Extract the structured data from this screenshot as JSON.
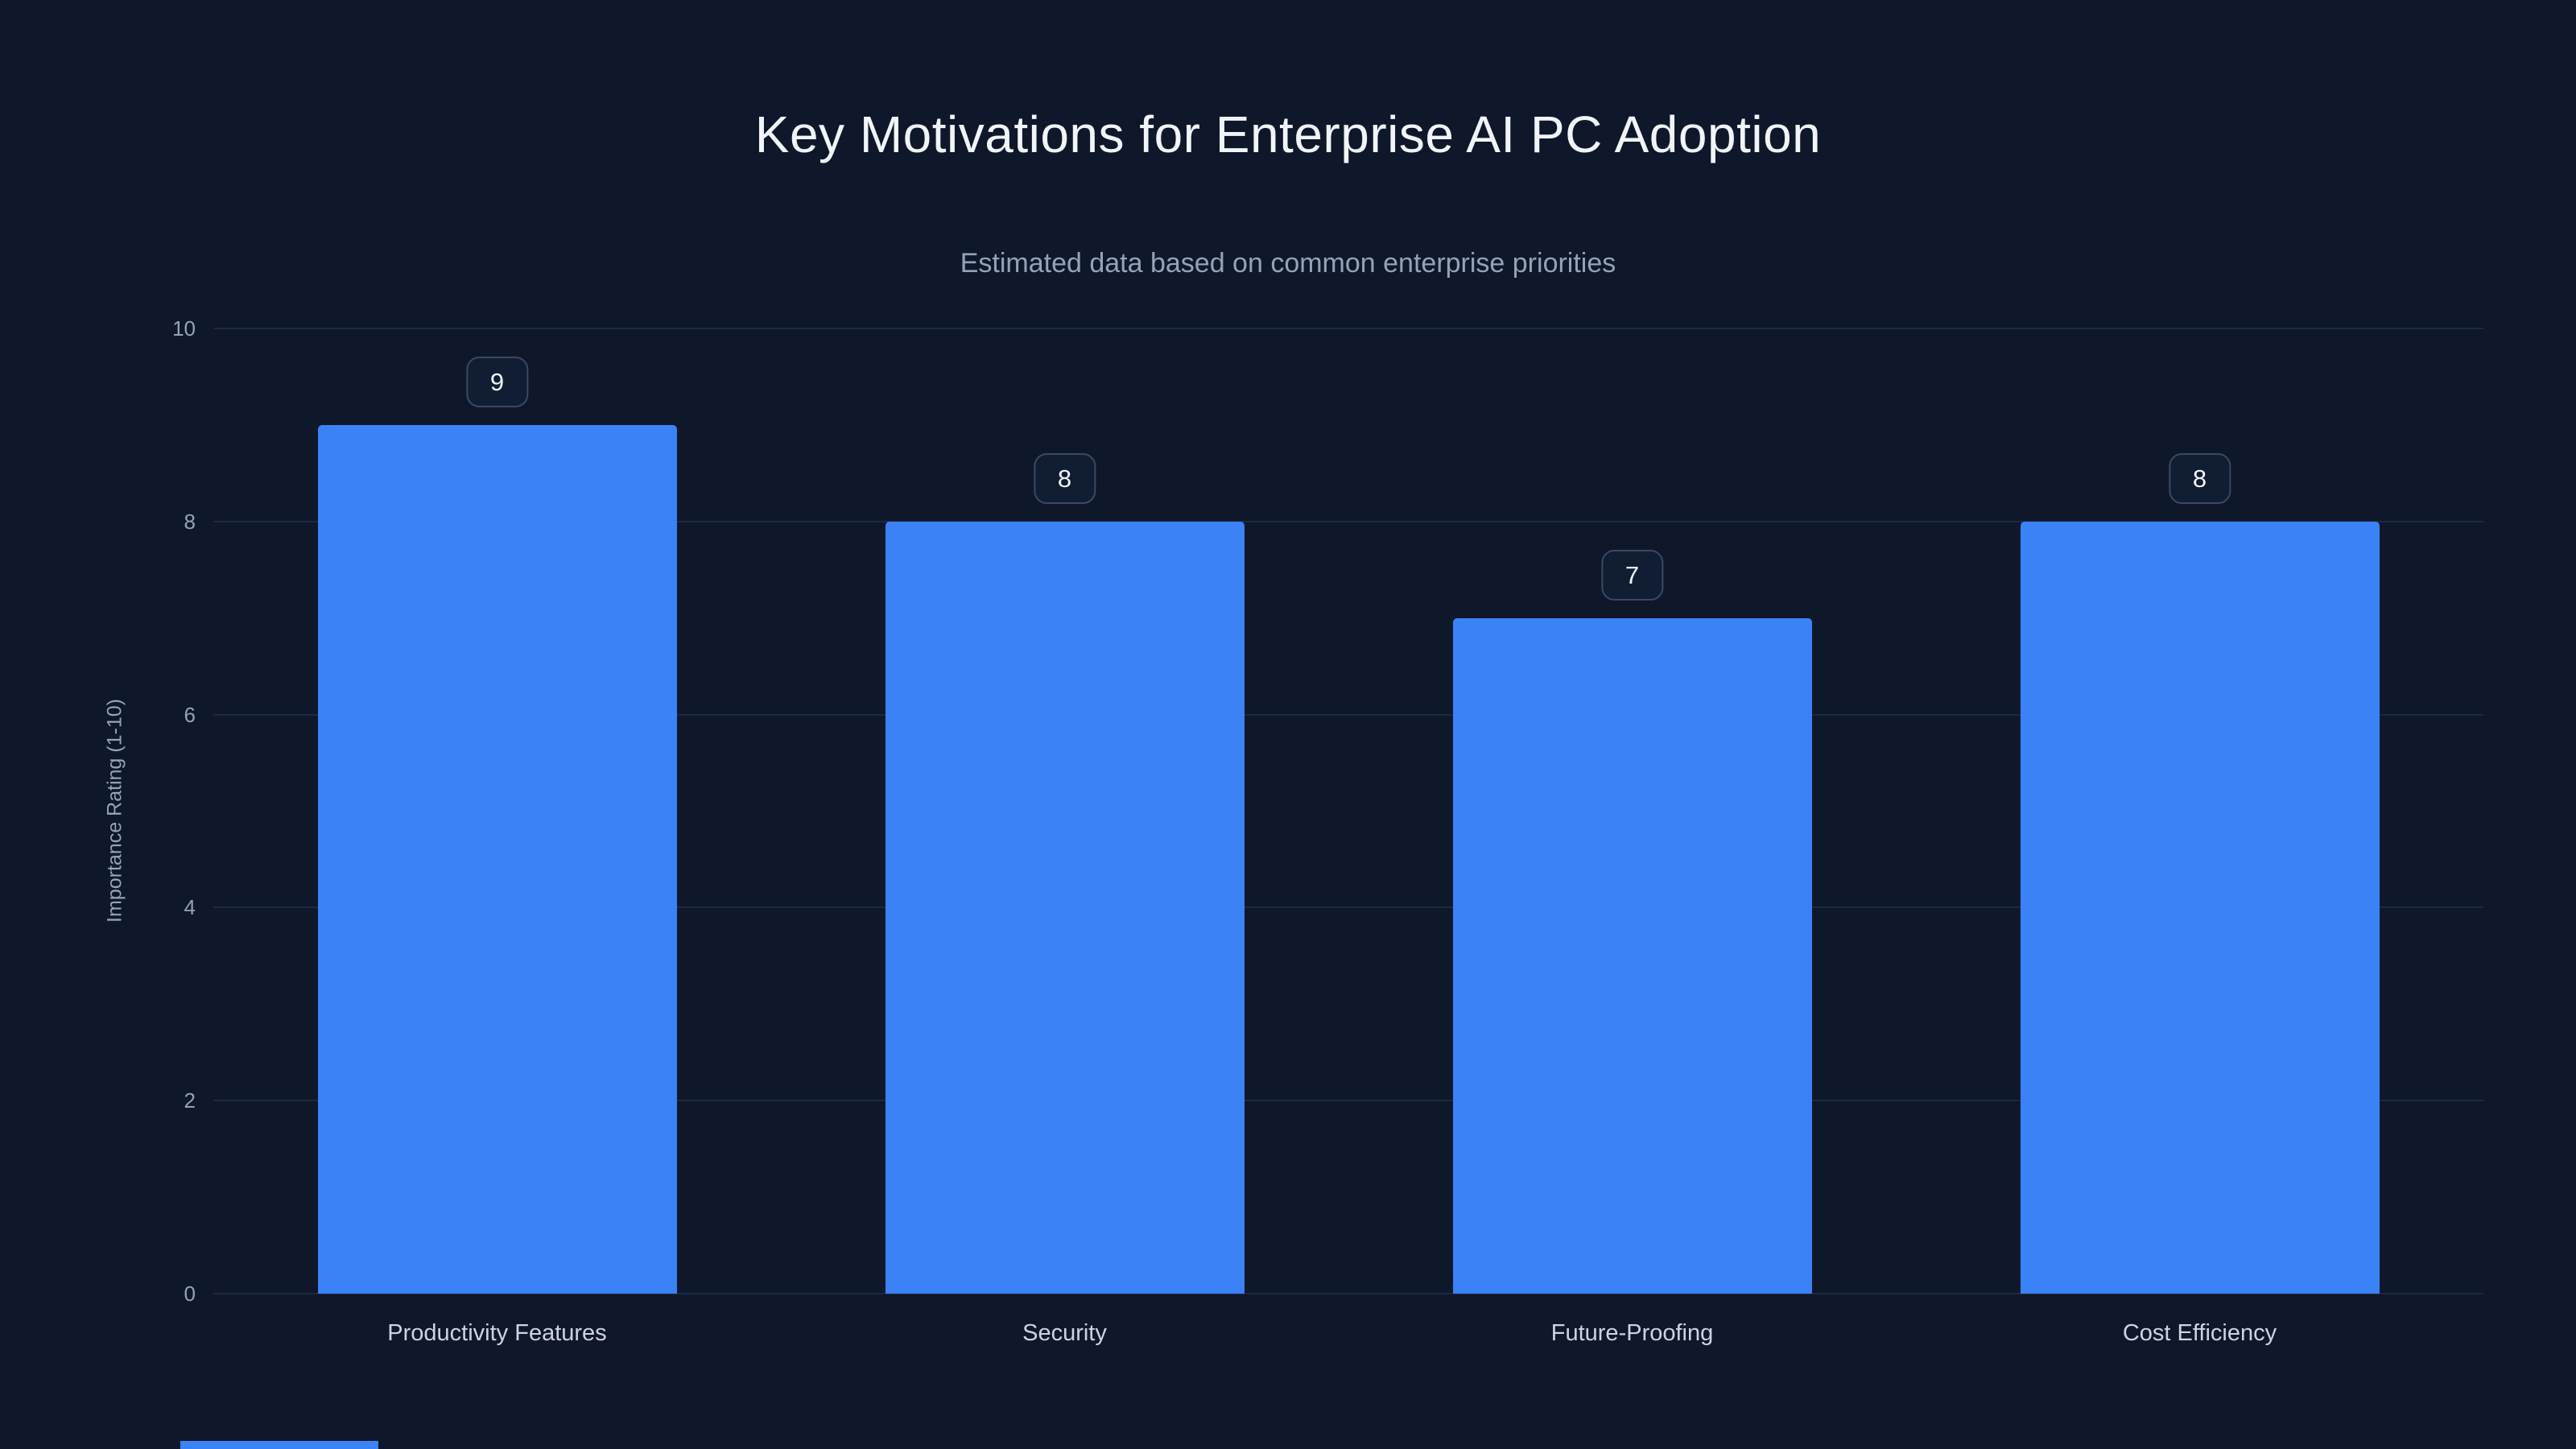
{
  "chart_data": {
    "type": "bar",
    "title": "Key Motivations for Enterprise AI PC Adoption",
    "subtitle": "Estimated data based on common enterprise priorities",
    "categories": [
      "Productivity Features",
      "Security",
      "Future-Proofing",
      "Cost Efficiency"
    ],
    "values": [
      9,
      8,
      7,
      8
    ],
    "value_labels": [
      "9",
      "8",
      "7",
      "8"
    ],
    "xlabel": "",
    "ylabel": "Importance Rating (1-10)",
    "ylim": [
      0,
      10
    ],
    "yticks": [
      0,
      2,
      4,
      6,
      8,
      10
    ],
    "grid": true,
    "legend": "none",
    "colors": {
      "background": "#0f172a",
      "bar": "#3b82f6",
      "title": "#f1f5f9",
      "subtitle": "#94a3b8",
      "tick_text": "#94a3b8",
      "category_text": "#cbd5e1",
      "gridline": "#1d2a3e",
      "badge_border": "#394a63",
      "badge_background": "#101d33"
    }
  }
}
